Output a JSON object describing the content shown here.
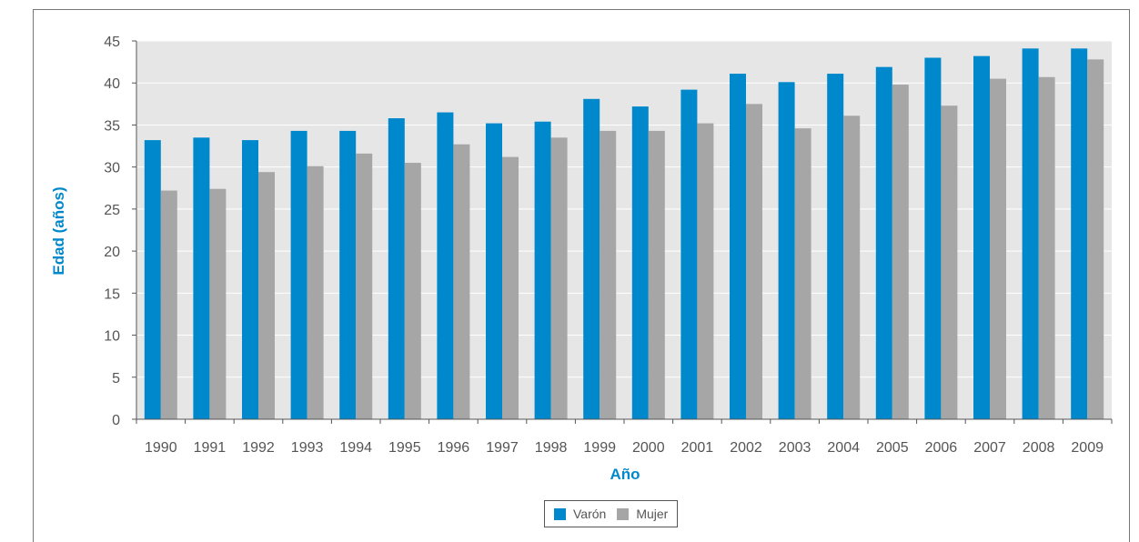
{
  "chart_data": {
    "type": "bar",
    "title": "",
    "xlabel": "Año",
    "ylabel": "Edad (años)",
    "ylim": [
      0,
      45
    ],
    "yticks": [
      0,
      5,
      10,
      15,
      20,
      25,
      30,
      35,
      40,
      45
    ],
    "grid": true,
    "legend_position": "bottom",
    "categories": [
      "1990",
      "1991",
      "1992",
      "1993",
      "1994",
      "1995",
      "1996",
      "1997",
      "1998",
      "1999",
      "2000",
      "2001",
      "2002",
      "2003",
      "2004",
      "2005",
      "2006",
      "2007",
      "2008",
      "2009"
    ],
    "series": [
      {
        "name": "Varón",
        "color": "#0088cc",
        "values": [
          33.2,
          33.5,
          33.2,
          34.3,
          34.3,
          35.8,
          36.5,
          35.2,
          35.4,
          38.1,
          37.2,
          39.2,
          41.1,
          40.1,
          41.1,
          41.9,
          43.0,
          43.2,
          44.1,
          44.1
        ]
      },
      {
        "name": "Mujer",
        "color": "#a6a6a6",
        "values": [
          27.2,
          27.4,
          29.4,
          30.1,
          31.6,
          30.5,
          32.7,
          31.2,
          33.5,
          34.3,
          34.3,
          35.2,
          37.5,
          34.6,
          36.1,
          39.8,
          37.3,
          40.5,
          40.7,
          42.8
        ]
      }
    ],
    "plot_background": "#e6e6e6",
    "grid_color": "#ffffff",
    "axis_title_color": "#0088cc"
  }
}
